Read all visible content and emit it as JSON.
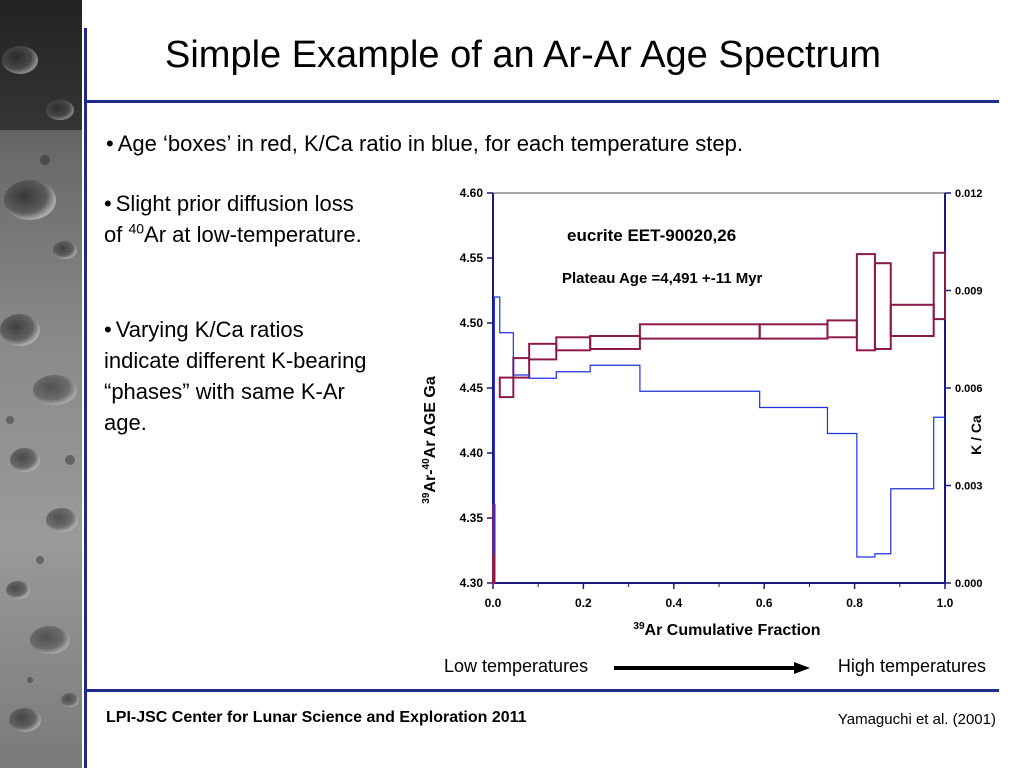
{
  "slide": {
    "title": "Simple Example of an Ar-Ar Age Spectrum",
    "bullets": [
      {
        "text": "Age ‘boxes’ in red, K/Ca ratio in blue, for each temperature step."
      },
      {
        "pre": "Slight prior diffusion loss of ",
        "sup": "40",
        "post": "Ar at low-temperature."
      },
      {
        "text": "Varying K/Ca ratios indicate different K-bearing “phases” with same K-Ar age."
      }
    ],
    "bullet_glyph": "•",
    "temperature_scale": {
      "low": "Low temperatures",
      "high": "High temperatures"
    },
    "footer": {
      "left": "LPI-JSC Center for Lunar Science and Exploration 2011",
      "right": "Yamaguchi et al. (2001)"
    }
  },
  "colors": {
    "rule": "#1f2a8a",
    "age_boxes": "#8b1a4a",
    "kca_line": "#2030e0",
    "axis": "#1a1a7a"
  },
  "chart_data": {
    "type": "line",
    "annotations": {
      "sample": "eucrite  EET-90020,26",
      "plateau": "Plateau Age =4,491 +-11 Myr"
    },
    "xlabel": {
      "sup": "39",
      "text": "Ar Cumulative Fraction"
    },
    "ylabel_left": {
      "sup1": "39",
      "mid": "Ar-",
      "sup2": "40",
      "text": "Ar AGE Ga"
    },
    "ylabel_right": "K / Ca",
    "xlim": [
      0,
      1
    ],
    "ylim_left": [
      4.3,
      4.6
    ],
    "ylim_right": [
      0,
      0.012
    ],
    "x_ticks": [
      "0.0",
      "0.2",
      "0.4",
      "0.6",
      "0.8",
      "1.0"
    ],
    "x_tick_values": [
      0,
      0.2,
      0.4,
      0.6,
      0.8,
      1.0
    ],
    "y_left_ticks": [
      "4.30",
      "4.35",
      "4.40",
      "4.45",
      "4.50",
      "4.55",
      "4.60"
    ],
    "y_left_tick_values": [
      4.3,
      4.35,
      4.4,
      4.45,
      4.5,
      4.55,
      4.6
    ],
    "y_right_ticks": [
      "0.000",
      "0.003",
      "0.006",
      "0.009",
      "0.012"
    ],
    "y_right_tick_values": [
      0,
      0.003,
      0.006,
      0.009,
      0.012
    ],
    "series": [
      {
        "name": "Age boxes",
        "kind": "boxes",
        "steps": [
          {
            "x0": 0.0,
            "x1": 0.003,
            "y_low": 4.3,
            "y_high": 4.36
          },
          {
            "x0": 0.015,
            "x1": 0.045,
            "y_low": 4.443,
            "y_high": 4.458
          },
          {
            "x0": 0.045,
            "x1": 0.08,
            "y_low": 4.458,
            "y_high": 4.473
          },
          {
            "x0": 0.08,
            "x1": 0.14,
            "y_low": 4.472,
            "y_high": 4.484
          },
          {
            "x0": 0.14,
            "x1": 0.215,
            "y_low": 4.479,
            "y_high": 4.489
          },
          {
            "x0": 0.215,
            "x1": 0.325,
            "y_low": 4.48,
            "y_high": 4.49
          },
          {
            "x0": 0.325,
            "x1": 0.59,
            "y_low": 4.488,
            "y_high": 4.499
          },
          {
            "x0": 0.59,
            "x1": 0.74,
            "y_low": 4.488,
            "y_high": 4.499
          },
          {
            "x0": 0.74,
            "x1": 0.805,
            "y_low": 4.489,
            "y_high": 4.502
          },
          {
            "x0": 0.805,
            "x1": 0.845,
            "y_low": 4.479,
            "y_high": 4.553
          },
          {
            "x0": 0.845,
            "x1": 0.88,
            "y_low": 4.48,
            "y_high": 4.546
          },
          {
            "x0": 0.88,
            "x1": 0.975,
            "y_low": 4.49,
            "y_high": 4.514
          },
          {
            "x0": 0.975,
            "x1": 1.0,
            "y_low": 4.503,
            "y_high": 4.554
          }
        ]
      },
      {
        "name": "K/Ca",
        "kind": "step",
        "steps": [
          {
            "x0": 0.0,
            "x1": 0.003,
            "y": 0.0009
          },
          {
            "x0": 0.003,
            "x1": 0.015,
            "y": 0.0088
          },
          {
            "x0": 0.015,
            "x1": 0.045,
            "y": 0.0077
          },
          {
            "x0": 0.045,
            "x1": 0.08,
            "y": 0.0064
          },
          {
            "x0": 0.08,
            "x1": 0.14,
            "y": 0.0063
          },
          {
            "x0": 0.14,
            "x1": 0.215,
            "y": 0.0065
          },
          {
            "x0": 0.215,
            "x1": 0.325,
            "y": 0.0067
          },
          {
            "x0": 0.325,
            "x1": 0.59,
            "y": 0.0059
          },
          {
            "x0": 0.59,
            "x1": 0.74,
            "y": 0.0054
          },
          {
            "x0": 0.74,
            "x1": 0.805,
            "y": 0.0046
          },
          {
            "x0": 0.805,
            "x1": 0.845,
            "y": 0.0008
          },
          {
            "x0": 0.845,
            "x1": 0.88,
            "y": 0.0009
          },
          {
            "x0": 0.88,
            "x1": 0.975,
            "y": 0.0029
          },
          {
            "x0": 0.975,
            "x1": 1.0,
            "y": 0.0051
          }
        ]
      }
    ]
  }
}
